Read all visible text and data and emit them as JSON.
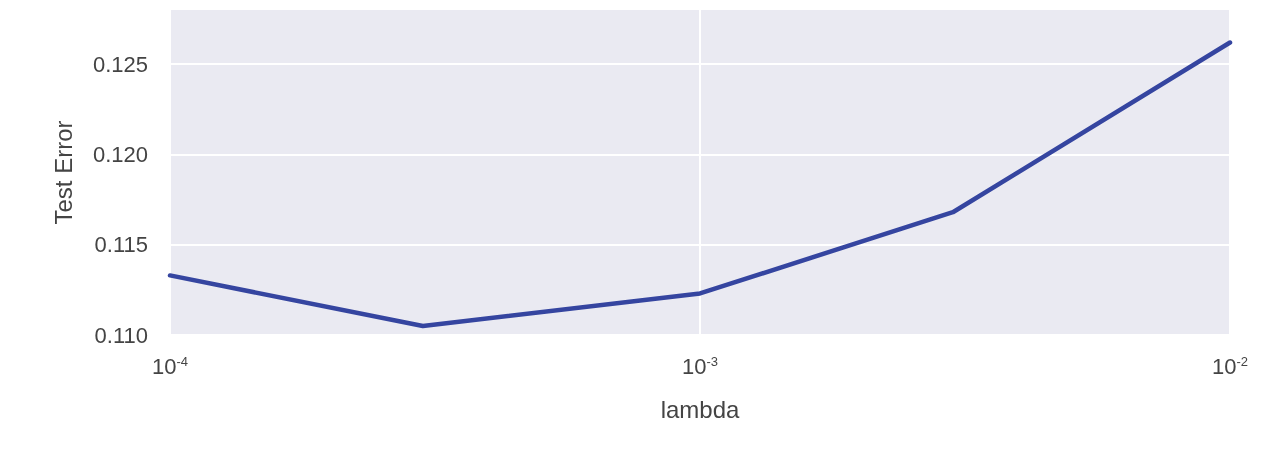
{
  "chart_data": {
    "type": "line",
    "xlabel": "lambda",
    "ylabel": "Test Error",
    "log": "x",
    "x": [
      0.0001,
      0.0003,
      0.001,
      0.003,
      0.01
    ],
    "series": [
      {
        "color": "#3545a0",
        "values": [
          0.1133,
          0.1105,
          0.1123,
          0.1168,
          0.1262
        ]
      }
    ],
    "xlim": [
      0.0001,
      0.01
    ],
    "xticks": [
      {
        "value": 0.0001,
        "label": "10$^{-4}$"
      },
      {
        "value": 0.001,
        "label": "10$^{-3}$"
      },
      {
        "value": 0.01,
        "label": "10$^{-2}$"
      }
    ],
    "ylim": [
      0.11,
      0.128
    ],
    "yticks": [
      {
        "value": 0.11,
        "label": "0.110"
      },
      {
        "value": 0.115,
        "label": "0.115"
      },
      {
        "value": 0.12,
        "label": "0.120"
      },
      {
        "value": 0.125,
        "label": "0.125"
      }
    ],
    "grid": true,
    "marker": "none",
    "line_style": "solid"
  }
}
